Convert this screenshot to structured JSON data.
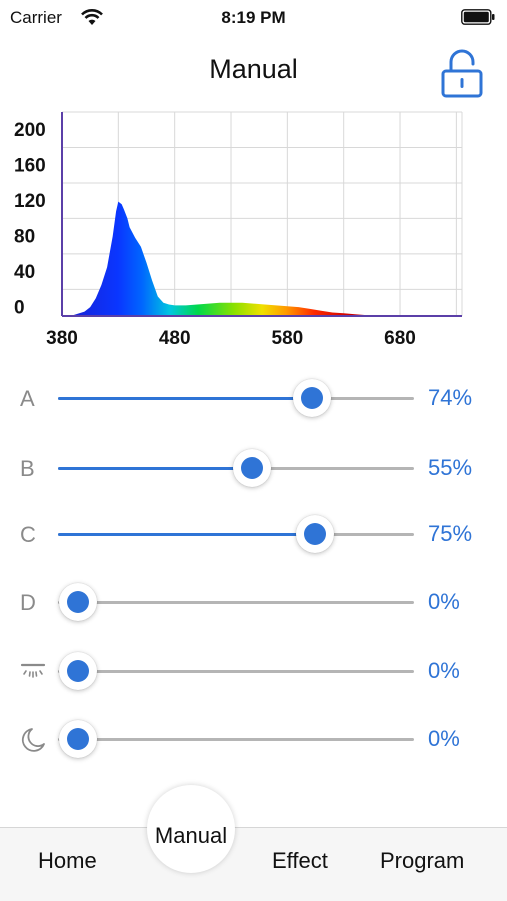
{
  "status": {
    "carrier": "Carrier",
    "time": "8:19 PM"
  },
  "nav": {
    "title": "Manual",
    "lock_icon": "unlock-icon"
  },
  "chart_data": {
    "type": "area",
    "title": "",
    "xlabel": "",
    "ylabel": "",
    "x_ticks": [
      380,
      480,
      580,
      680
    ],
    "y_ticks": [
      0,
      40,
      80,
      120,
      160,
      200
    ],
    "xlim": [
      380,
      735
    ],
    "ylim": [
      -30,
      200
    ],
    "grid": true,
    "series": [
      {
        "x": [
          380,
          390,
          400,
          405,
          410,
          415,
          420,
          425,
          428,
          430,
          433,
          435,
          438,
          440,
          445,
          450,
          455,
          460,
          465,
          470,
          475,
          480,
          490,
          500,
          510,
          520,
          530,
          540,
          550,
          560,
          570,
          580,
          590,
          600,
          610,
          620,
          630,
          640,
          650,
          660,
          680,
          700
        ],
        "y": [
          -30,
          -29,
          -25,
          -20,
          -10,
          5,
          25,
          60,
          88,
          99,
          96,
          90,
          80,
          70,
          58,
          48,
          30,
          10,
          -8,
          -15,
          -17,
          -18,
          -18,
          -17,
          -16,
          -15,
          -15,
          -15,
          -16,
          -17,
          -18,
          -19,
          -20,
          -22,
          -24,
          -26,
          -27,
          -28,
          -29,
          -29.5,
          -30,
          -30
        ]
      }
    ]
  },
  "sliders": [
    {
      "label": "A",
      "value": 74,
      "value_text": "74%"
    },
    {
      "label": "B",
      "value": 55,
      "value_text": "55%"
    },
    {
      "label": "C",
      "value": 75,
      "value_text": "75%"
    },
    {
      "label": "D",
      "value": 0,
      "value_text": "0%"
    },
    {
      "label": "",
      "icon": "sunlight-icon",
      "value": 0,
      "value_text": "0%"
    },
    {
      "label": "",
      "icon": "moon-icon",
      "value": 0,
      "value_text": "0%"
    }
  ],
  "tabs": {
    "home": "Home",
    "manual": "Manual",
    "effect": "Effect",
    "program": "Program"
  },
  "colors": {
    "accent": "#2f74d6",
    "track": "#b5b5b5",
    "axis": "#5b3fa8"
  }
}
